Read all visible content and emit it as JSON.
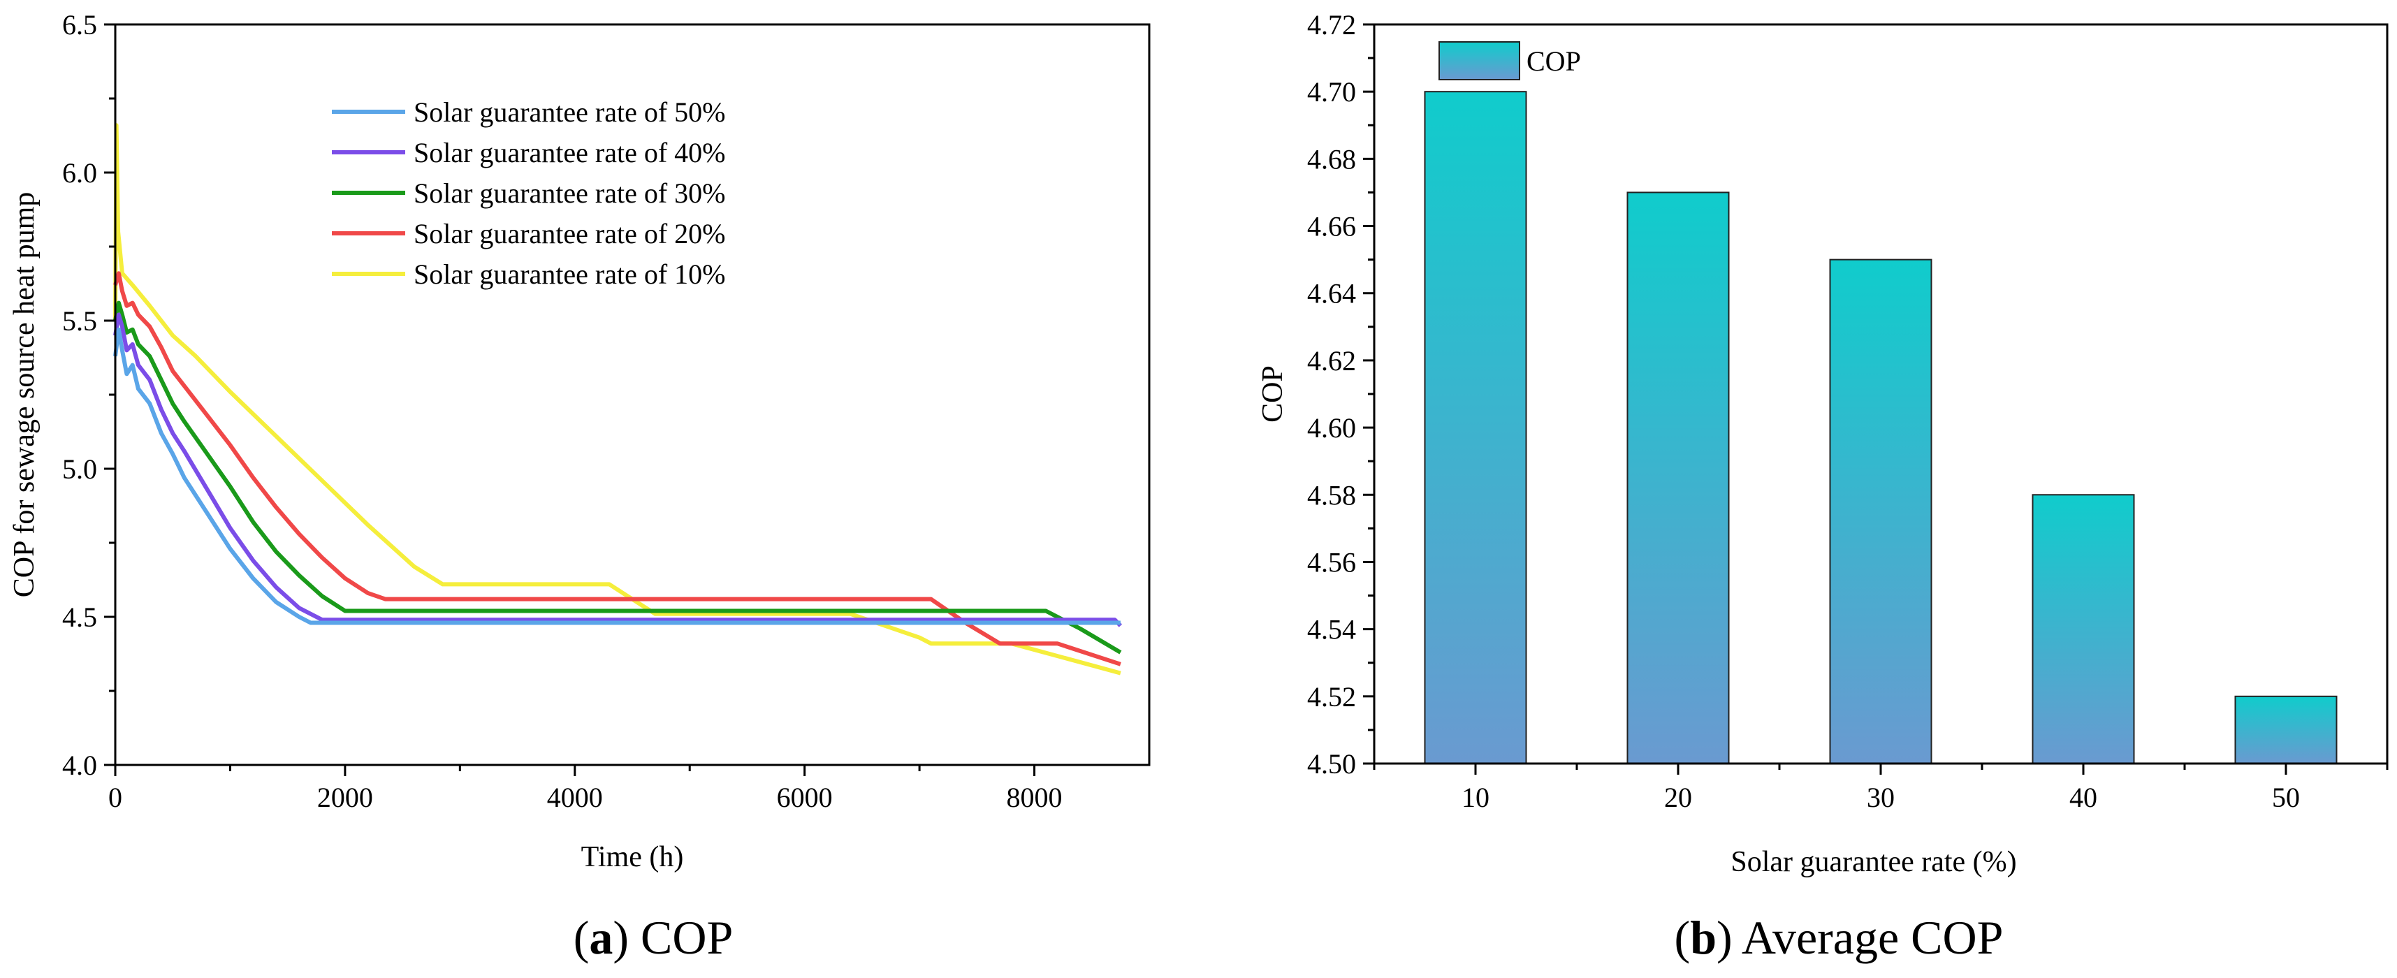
{
  "chart_data": [
    {
      "type": "line",
      "xlabel": "Time (h)",
      "ylabel": "COP for sewage source heat pump",
      "xlim": [
        0,
        9000
      ],
      "ylim": [
        4.0,
        6.5
      ],
      "x_ticks": [
        "0",
        "2000",
        "4000",
        "6000",
        "8000"
      ],
      "y_ticks": [
        "4.0",
        "4.5",
        "5.0",
        "5.5",
        "6.0",
        "6.5"
      ],
      "grid": false,
      "legend_position": "top-right",
      "series": [
        {
          "name": "Solar guarantee rate of 50%",
          "color": "#5aa5e8",
          "x": [
            0,
            30,
            60,
            100,
            150,
            200,
            300,
            400,
            500,
            600,
            800,
            1000,
            1200,
            1400,
            1600,
            1700,
            1800,
            2000,
            3000,
            4000,
            5000,
            6000,
            7000,
            8000,
            8700,
            8750
          ],
          "y": [
            5.38,
            5.47,
            5.4,
            5.32,
            5.35,
            5.27,
            5.22,
            5.12,
            5.05,
            4.97,
            4.85,
            4.73,
            4.63,
            4.55,
            4.5,
            4.48,
            4.48,
            4.48,
            4.48,
            4.48,
            4.48,
            4.48,
            4.48,
            4.48,
            4.48,
            4.48
          ]
        },
        {
          "name": "Solar guarantee rate of 40%",
          "color": "#7b4de8",
          "x": [
            0,
            30,
            60,
            100,
            150,
            200,
            300,
            400,
            500,
            600,
            800,
            1000,
            1200,
            1400,
            1600,
            1800,
            1900,
            2000,
            3000,
            4000,
            5000,
            6000,
            7000,
            8000,
            8700,
            8750
          ],
          "y": [
            5.45,
            5.52,
            5.48,
            5.4,
            5.42,
            5.35,
            5.3,
            5.2,
            5.12,
            5.06,
            4.93,
            4.8,
            4.69,
            4.6,
            4.53,
            4.49,
            4.49,
            4.49,
            4.49,
            4.49,
            4.49,
            4.49,
            4.49,
            4.49,
            4.49,
            4.47
          ]
        },
        {
          "name": "Solar guarantee rate of 30%",
          "color": "#1a9a1a",
          "x": [
            0,
            30,
            60,
            100,
            150,
            200,
            300,
            400,
            500,
            600,
            800,
            1000,
            1200,
            1400,
            1600,
            1800,
            2000,
            2100,
            3000,
            4000,
            5000,
            6000,
            7000,
            8000,
            8100,
            8400,
            8750
          ],
          "y": [
            5.5,
            5.56,
            5.52,
            5.46,
            5.47,
            5.42,
            5.38,
            5.3,
            5.22,
            5.16,
            5.05,
            4.94,
            4.82,
            4.72,
            4.64,
            4.57,
            4.52,
            4.52,
            4.52,
            4.52,
            4.52,
            4.52,
            4.52,
            4.52,
            4.52,
            4.46,
            4.38
          ]
        },
        {
          "name": "Solar guarantee rate of 20%",
          "color": "#f04848",
          "x": [
            0,
            30,
            60,
            100,
            150,
            200,
            300,
            400,
            500,
            600,
            800,
            1000,
            1200,
            1400,
            1600,
            1800,
            2000,
            2200,
            2350,
            3000,
            4000,
            5000,
            6000,
            7000,
            7100,
            7400,
            7700,
            8200,
            8750
          ],
          "y": [
            5.62,
            5.66,
            5.6,
            5.55,
            5.56,
            5.52,
            5.48,
            5.41,
            5.33,
            5.28,
            5.18,
            5.08,
            4.97,
            4.87,
            4.78,
            4.7,
            4.63,
            4.58,
            4.56,
            4.56,
            4.56,
            4.56,
            4.56,
            4.56,
            4.56,
            4.48,
            4.41,
            4.41,
            4.34
          ]
        },
        {
          "name": "Solar guarantee rate of 10%",
          "color": "#f5ee3c",
          "x": [
            0,
            10,
            25,
            60,
            150,
            300,
            500,
            700,
            1000,
            1400,
            1800,
            2200,
            2600,
            2850,
            3500,
            4000,
            4300,
            4700,
            5500,
            6400,
            7000,
            7100,
            7800,
            8750
          ],
          "y": [
            5.5,
            6.16,
            5.8,
            5.66,
            5.62,
            5.55,
            5.45,
            5.38,
            5.26,
            5.11,
            4.96,
            4.81,
            4.67,
            4.61,
            4.61,
            4.61,
            4.61,
            4.51,
            4.51,
            4.51,
            4.43,
            4.41,
            4.41,
            4.31
          ]
        }
      ],
      "caption_letter": "(a)",
      "caption_text": "COP"
    },
    {
      "type": "bar",
      "categories": [
        "10",
        "20",
        "30",
        "40",
        "50"
      ],
      "series": [
        {
          "name": "COP",
          "values": [
            4.7,
            4.67,
            4.65,
            4.58,
            4.52
          ]
        }
      ],
      "xlabel": "Solar guarantee rate (%)",
      "ylabel": "COP",
      "ylim": [
        4.5,
        4.72
      ],
      "y_ticks": [
        "4.50",
        "4.52",
        "4.54",
        "4.56",
        "4.58",
        "4.60",
        "4.62",
        "4.64",
        "4.66",
        "4.68",
        "4.70",
        "4.72"
      ],
      "grid": false,
      "legend_position": "top-left",
      "bar_gradient": {
        "top": "#10cccc",
        "bottom": "#6a9ad0"
      },
      "caption_letter": "(b)",
      "caption_text": "Average COP"
    }
  ]
}
